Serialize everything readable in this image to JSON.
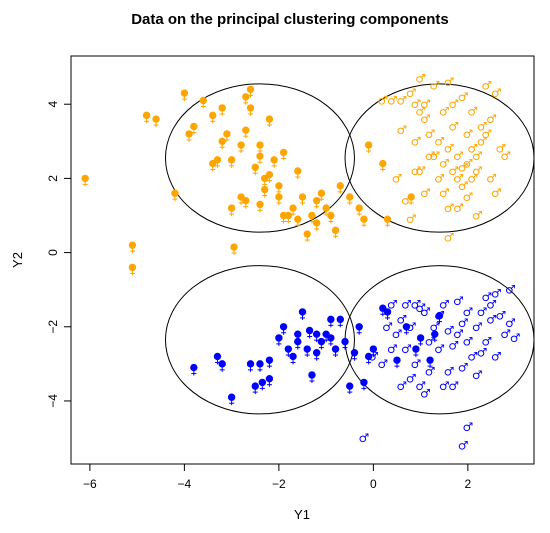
{
  "chart_data": {
    "type": "scatter",
    "title": "Data on the principal clustering components",
    "xlabel": "Y1",
    "ylabel": "Y2",
    "xlim": [
      -6.4,
      3.4
    ],
    "ylim": [
      -5.7,
      5.3
    ],
    "xticks": [
      -6,
      -4,
      -2,
      0,
      2
    ],
    "yticks": [
      -4,
      -2,
      0,
      2,
      4
    ],
    "grid": false,
    "legend": "none",
    "colors": {
      "orange": "#FFA500",
      "blue": "#0000FF"
    },
    "circles": [
      {
        "cx": -2.4,
        "cy": 2.55,
        "r": 2.0
      },
      {
        "cx": 1.4,
        "cy": 2.55,
        "r": 2.0
      },
      {
        "cx": -2.4,
        "cy": -2.35,
        "r": 2.0
      },
      {
        "cx": 1.4,
        "cy": -2.35,
        "r": 2.0
      }
    ],
    "series": [
      {
        "color": "orange",
        "marker": "female",
        "fill": "solid",
        "points": [
          [
            -6.1,
            2.0
          ],
          [
            -5.1,
            0.2
          ],
          [
            -5.1,
            -0.4
          ],
          [
            -4.8,
            3.7
          ],
          [
            -4.6,
            3.6
          ],
          [
            -4.2,
            1.6
          ],
          [
            -4.0,
            4.3
          ],
          [
            -3.9,
            3.2
          ],
          [
            -3.8,
            3.4
          ],
          [
            -3.6,
            4.1
          ],
          [
            -3.4,
            3.7
          ],
          [
            -3.3,
            2.5
          ],
          [
            -3.2,
            3.9
          ],
          [
            -3.1,
            3.2
          ],
          [
            -3.0,
            1.2
          ],
          [
            -3.0,
            2.5
          ],
          [
            -2.95,
            0.15
          ],
          [
            -2.8,
            1.5
          ],
          [
            -2.7,
            3.3
          ],
          [
            -2.7,
            4.2
          ],
          [
            -2.6,
            4.4
          ],
          [
            -2.5,
            2.3
          ],
          [
            -2.4,
            2.6
          ],
          [
            -2.4,
            1.3
          ],
          [
            -2.3,
            2.0
          ],
          [
            -2.2,
            2.1
          ],
          [
            -2.1,
            2.5
          ],
          [
            -2.0,
            1.5
          ],
          [
            -1.9,
            1.0
          ],
          [
            -1.8,
            1.0
          ],
          [
            -1.7,
            1.2
          ],
          [
            -1.6,
            2.2
          ],
          [
            -1.5,
            1.5
          ],
          [
            -1.4,
            0.5
          ],
          [
            -1.3,
            1.0
          ],
          [
            -1.2,
            0.8
          ],
          [
            -1.1,
            1.6
          ],
          [
            -1.0,
            1.2
          ],
          [
            -0.9,
            1.0
          ],
          [
            -0.7,
            1.8
          ],
          [
            -0.5,
            1.5
          ],
          [
            -0.3,
            1.2
          ],
          [
            -0.2,
            0.9
          ],
          [
            -0.1,
            2.9
          ],
          [
            0.2,
            2.4
          ],
          [
            0.3,
            0.9
          ],
          [
            0.8,
            1.5
          ],
          [
            -2.6,
            3.9
          ],
          [
            -2.2,
            3.6
          ],
          [
            -3.4,
            2.4
          ],
          [
            -2.8,
            2.9
          ],
          [
            -1.9,
            2.7
          ],
          [
            -2.3,
            1.7
          ],
          [
            -1.2,
            1.4
          ],
          [
            -0.8,
            0.6
          ],
          [
            -1.6,
            0.9
          ],
          [
            -3.2,
            3.0
          ],
          [
            -2.4,
            2.9
          ],
          [
            -2.0,
            1.8
          ],
          [
            -2.7,
            1.4
          ]
        ]
      },
      {
        "color": "orange",
        "marker": "male",
        "fill": "open",
        "points": [
          [
            0.2,
            4.1
          ],
          [
            0.4,
            4.1
          ],
          [
            0.6,
            4.1
          ],
          [
            0.8,
            4.3
          ],
          [
            0.9,
            4.0
          ],
          [
            1.0,
            4.7
          ],
          [
            1.0,
            3.8
          ],
          [
            1.1,
            3.6
          ],
          [
            1.2,
            3.2
          ],
          [
            1.3,
            2.6
          ],
          [
            1.4,
            3.0
          ],
          [
            1.5,
            2.4
          ],
          [
            1.6,
            2.8
          ],
          [
            1.7,
            2.2
          ],
          [
            1.8,
            2.0
          ],
          [
            1.9,
            1.8
          ],
          [
            2.0,
            2.4
          ],
          [
            2.1,
            2.0
          ],
          [
            2.2,
            2.6
          ],
          [
            2.3,
            3.4
          ],
          [
            2.4,
            3.2
          ],
          [
            2.5,
            3.6
          ],
          [
            2.6,
            4.3
          ],
          [
            2.7,
            2.8
          ],
          [
            2.8,
            2.6
          ],
          [
            0.5,
            2.0
          ],
          [
            0.7,
            1.4
          ],
          [
            0.9,
            2.2
          ],
          [
            1.1,
            1.6
          ],
          [
            0.8,
            0.9
          ],
          [
            1.6,
            0.4
          ],
          [
            1.8,
            1.2
          ],
          [
            2.0,
            1.5
          ],
          [
            2.2,
            1.0
          ],
          [
            1.5,
            3.8
          ],
          [
            1.7,
            4.0
          ],
          [
            1.9,
            4.2
          ],
          [
            2.1,
            3.8
          ],
          [
            1.3,
            4.5
          ],
          [
            1.6,
            4.6
          ],
          [
            2.4,
            4.5
          ],
          [
            2.0,
            3.2
          ],
          [
            1.4,
            2.0
          ],
          [
            1.2,
            2.6
          ],
          [
            1.0,
            2.2
          ],
          [
            1.8,
            2.6
          ],
          [
            2.2,
            2.2
          ],
          [
            2.5,
            2.0
          ],
          [
            2.6,
            1.6
          ],
          [
            1.5,
            1.6
          ],
          [
            0.6,
            3.3
          ],
          [
            1.7,
            3.4
          ],
          [
            2.1,
            2.8
          ],
          [
            1.9,
            2.3
          ],
          [
            1.6,
            1.2
          ],
          [
            0.9,
            3.0
          ],
          [
            2.3,
            3.0
          ],
          [
            1.1,
            4.0
          ]
        ]
      },
      {
        "color": "blue",
        "marker": "female",
        "fill": "solid",
        "points": [
          [
            -3.8,
            -3.1
          ],
          [
            -3.3,
            -2.8
          ],
          [
            -3.2,
            -3.0
          ],
          [
            -3.0,
            -3.9
          ],
          [
            -2.6,
            -3.0
          ],
          [
            -2.5,
            -3.6
          ],
          [
            -2.4,
            -3.0
          ],
          [
            -2.35,
            -3.5
          ],
          [
            -2.2,
            -3.4
          ],
          [
            -2.0,
            -2.3
          ],
          [
            -1.9,
            -2.0
          ],
          [
            -1.8,
            -2.6
          ],
          [
            -1.7,
            -2.8
          ],
          [
            -1.6,
            -2.2
          ],
          [
            -1.5,
            -1.6
          ],
          [
            -1.4,
            -2.6
          ],
          [
            -1.35,
            -2.1
          ],
          [
            -1.3,
            -3.3
          ],
          [
            -1.2,
            -2.2
          ],
          [
            -1.1,
            -2.4
          ],
          [
            -1.0,
            -2.2
          ],
          [
            -0.9,
            -2.3
          ],
          [
            -0.8,
            -2.6
          ],
          [
            -0.7,
            -1.8
          ],
          [
            -0.6,
            -2.4
          ],
          [
            -0.5,
            -3.6
          ],
          [
            -0.4,
            -2.7
          ],
          [
            -0.3,
            -2.0
          ],
          [
            -0.2,
            -3.5
          ],
          [
            -0.1,
            -2.8
          ],
          [
            0.0,
            -2.6
          ],
          [
            0.2,
            -1.5
          ],
          [
            0.3,
            -1.6
          ],
          [
            0.5,
            -2.9
          ],
          [
            0.7,
            -2.0
          ],
          [
            0.9,
            -2.6
          ],
          [
            1.0,
            -2.3
          ],
          [
            1.2,
            -2.9
          ],
          [
            1.3,
            -2.2
          ],
          [
            1.4,
            -1.7
          ],
          [
            -1.6,
            -2.4
          ],
          [
            -0.9,
            -1.8
          ],
          [
            -1.2,
            -2.7
          ],
          [
            -2.2,
            -2.9
          ]
        ]
      },
      {
        "color": "blue",
        "marker": "male",
        "fill": "open",
        "points": [
          [
            -0.2,
            -5.0
          ],
          [
            0.0,
            -2.8
          ],
          [
            0.2,
            -3.0
          ],
          [
            0.3,
            -2.0
          ],
          [
            0.4,
            -1.4
          ],
          [
            0.5,
            -2.2
          ],
          [
            0.6,
            -1.8
          ],
          [
            0.7,
            -2.6
          ],
          [
            0.8,
            -3.4
          ],
          [
            0.8,
            -2.0
          ],
          [
            0.9,
            -1.4
          ],
          [
            1.0,
            -1.5
          ],
          [
            1.0,
            -3.6
          ],
          [
            1.1,
            -3.8
          ],
          [
            1.2,
            -2.4
          ],
          [
            1.3,
            -2.0
          ],
          [
            1.4,
            -1.7
          ],
          [
            1.5,
            -1.4
          ],
          [
            1.6,
            -3.2
          ],
          [
            1.7,
            -2.5
          ],
          [
            1.8,
            -2.2
          ],
          [
            1.9,
            -1.9
          ],
          [
            2.0,
            -1.6
          ],
          [
            2.1,
            -2.8
          ],
          [
            2.2,
            -2.0
          ],
          [
            2.3,
            -1.6
          ],
          [
            2.4,
            -2.4
          ],
          [
            2.5,
            -1.4
          ],
          [
            2.6,
            -1.1
          ],
          [
            2.7,
            -1.7
          ],
          [
            2.8,
            -2.2
          ],
          [
            2.9,
            -1.9
          ],
          [
            3.0,
            -2.3
          ],
          [
            2.0,
            -4.7
          ],
          [
            1.9,
            -5.2
          ],
          [
            1.2,
            -3.2
          ],
          [
            0.6,
            -3.6
          ],
          [
            1.5,
            -3.6
          ],
          [
            2.2,
            -3.3
          ],
          [
            2.6,
            -2.8
          ],
          [
            1.8,
            -1.3
          ],
          [
            2.0,
            -2.4
          ],
          [
            1.6,
            -2.1
          ],
          [
            1.1,
            -1.6
          ],
          [
            0.4,
            -2.6
          ],
          [
            0.9,
            -3.0
          ],
          [
            2.4,
            -1.2
          ],
          [
            1.7,
            -3.6
          ],
          [
            2.3,
            -2.7
          ],
          [
            1.4,
            -2.6
          ],
          [
            0.7,
            -1.4
          ],
          [
            2.9,
            -1.0
          ],
          [
            2.5,
            -1.8
          ],
          [
            1.9,
            -3.1
          ]
        ]
      }
    ]
  }
}
